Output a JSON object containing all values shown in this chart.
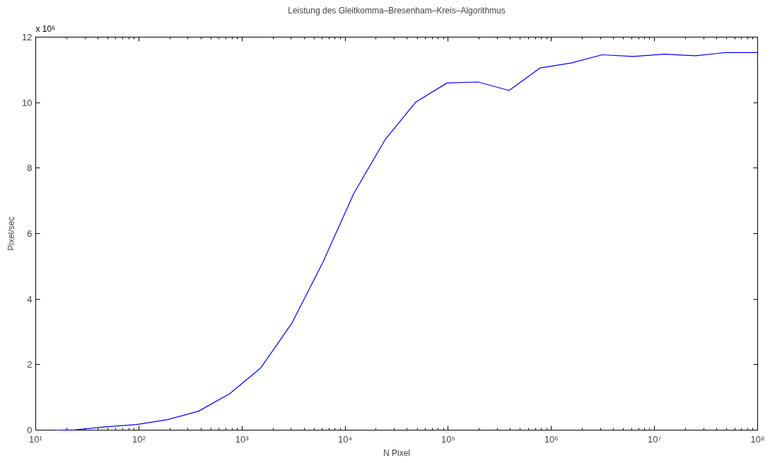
{
  "chart_data": {
    "type": "line",
    "title": "Leistung des Gleitkomma–Bresenham–Kreis–Algorithmus",
    "xlabel": "N Pixel",
    "ylabel": "Pixel/sec",
    "annotations": [
      "x 10⁶"
    ],
    "log": "x",
    "grid": false,
    "marker": "none",
    "line_style": "solid",
    "x": [
      16,
      24,
      47.5,
      95,
      190,
      380,
      760,
      1520,
      3040,
      6080,
      12160,
      24320,
      48640,
      97280,
      194560,
      389120,
      778240,
      1556480,
      3112960,
      6225920,
      12451840,
      24903680,
      49807360,
      99614720
    ],
    "series": [
      {
        "color": "#0000ff",
        "values": [
          0,
          0.01,
          0.1,
          0.17,
          0.32,
          0.58,
          1.11,
          1.9,
          3.26,
          5.12,
          7.23,
          8.86,
          10.02,
          10.6,
          10.63,
          10.37,
          11.06,
          11.21,
          11.46,
          11.41,
          11.48,
          11.43,
          11.53,
          11.53
        ]
      }
    ],
    "xlim": [
      10,
      100000000
    ],
    "ylim": [
      0,
      12
    ],
    "xticks": [
      {
        "value": 10,
        "label": "10¹"
      },
      {
        "value": 100,
        "label": "10²"
      },
      {
        "value": 1000,
        "label": "10³"
      },
      {
        "value": 10000,
        "label": "10⁴"
      },
      {
        "value": 100000,
        "label": "10⁵"
      },
      {
        "value": 1000000,
        "label": "10⁶"
      },
      {
        "value": 10000000,
        "label": "10⁷"
      },
      {
        "value": 100000000,
        "label": "10⁸"
      }
    ],
    "yticks": [
      0,
      2,
      4,
      6,
      8,
      10,
      12
    ]
  }
}
